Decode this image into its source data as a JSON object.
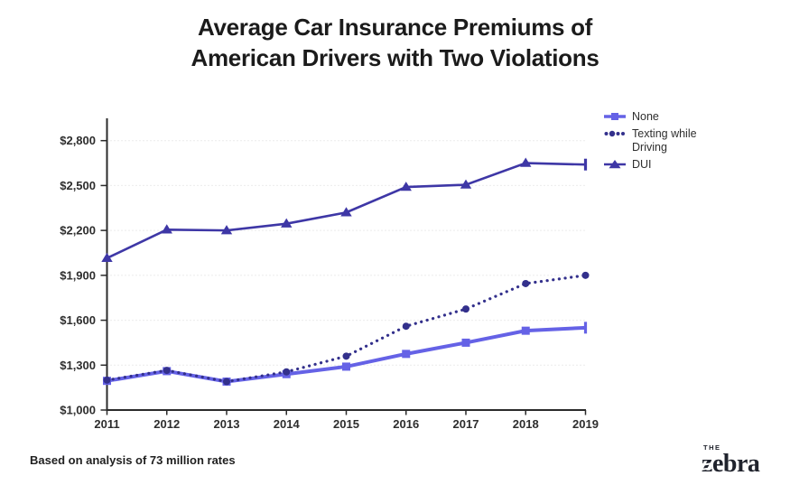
{
  "title": {
    "line1": "Average Car Insurance Premiums of",
    "line2": "American Drivers with Two Violations"
  },
  "footer": {
    "note": "Based on analysis of 73 million rates"
  },
  "logo": {
    "top": "THE",
    "z": "z",
    "rest": "ebra"
  },
  "chart_data": {
    "type": "line",
    "title": "Average Car Insurance Premiums of American Drivers with Two Violations",
    "xlabel": "",
    "ylabel": "",
    "x": [
      2011,
      2012,
      2013,
      2014,
      2015,
      2016,
      2017,
      2018,
      2019
    ],
    "series": [
      {
        "name": "None",
        "color": "#6562e6",
        "line": "solid",
        "marker": "square",
        "values": [
          1195,
          1260,
          1190,
          1240,
          1290,
          1375,
          1450,
          1530,
          1550
        ]
      },
      {
        "name": "Texting while Driving",
        "color": "#33308c",
        "line": "dotted",
        "marker": "circle",
        "values": [
          1200,
          1265,
          1190,
          1255,
          1360,
          1560,
          1675,
          1845,
          1900
        ]
      },
      {
        "name": "DUI",
        "color": "#3e37a6",
        "line": "solid",
        "marker": "triangle",
        "values": [
          2015,
          2205,
          2200,
          2245,
          2320,
          2490,
          2505,
          2650,
          2640
        ]
      }
    ],
    "yticks": [
      1000,
      1300,
      1600,
      1900,
      2200,
      2500,
      2800
    ],
    "ytick_labels": [
      "$1,000",
      "$1,300",
      "$1,600",
      "$1,900",
      "$2,200",
      "$2,500",
      "$2,800"
    ],
    "ylim": [
      1000,
      2950
    ],
    "grid": "horizontal-dotted",
    "legend_position": "right"
  }
}
